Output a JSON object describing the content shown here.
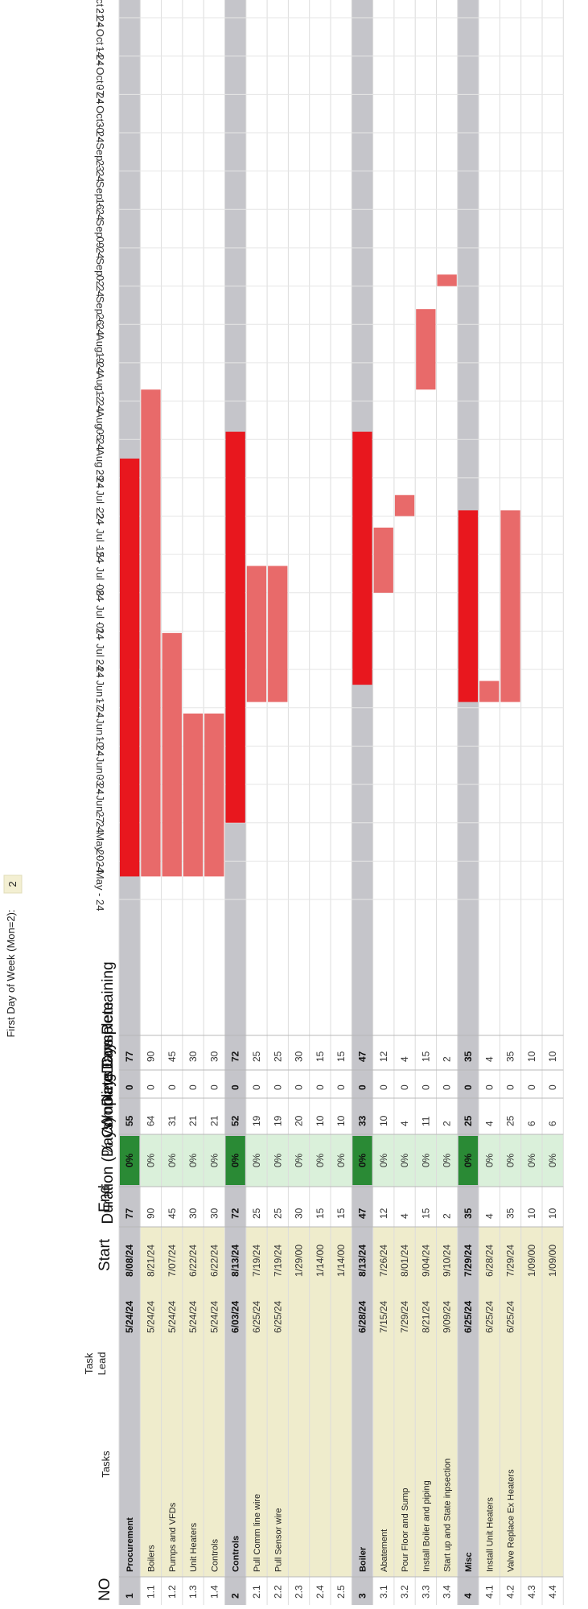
{
  "page_header": {
    "first_day_label": "First Day of Week (Mon=2):",
    "first_day_value": "2"
  },
  "columns": {
    "no": "NO",
    "tasks": "Tasks",
    "task_lead": "Task Lead",
    "start": "Start",
    "end": "End",
    "duration": "Duration (Days)",
    "pct_complete": "% Complete",
    "working_days": "Working Days",
    "days_complete": "Days Complete",
    "days_remaining": "Days Remaining"
  },
  "week_labels": [
    "20 - May - 24",
    "27 - May - 24",
    "03 - Jun - 24",
    "10 - Jun - 24",
    "17 - Jun - 24",
    "24 - Jun - 24",
    "01 - Jul - 24",
    "08 - Jul - 24",
    "15 - Jul - 24",
    "22 - Jul - 24",
    "29 - Jul - 24",
    "05 - Aug - 24",
    "12 - Aug - 24",
    "19 - Aug - 24",
    "26 - Aug - 24",
    "02 - Sep - 24",
    "09 - Sep - 24",
    "16 - Sep - 24",
    "23 - Sep - 24",
    "30 - Sep - 24",
    "07 - Oct - 24",
    "14 - Oct - 24",
    "21 - Oct - 24",
    "28 - Oct - 24",
    "04 - Nov - 24",
    "11 - Nov - 24",
    "18 - Nov - 24",
    "25 - Nov - 24",
    "02 - Dec - 24",
    "09 - Dec - 24",
    "16 - Dec - 24",
    "23 - Dec - 24"
  ],
  "rows": [
    {
      "no": "1",
      "task": "Procurement",
      "lead": "",
      "start": "5/24/24",
      "end": "8/08/24",
      "duration": "77",
      "pct": "0%",
      "working": "55",
      "complete": "0",
      "remaining": "77",
      "type": "phase",
      "bar_start": 0.6,
      "bar_end": 11.5
    },
    {
      "no": "1.1",
      "task": "Boilers",
      "lead": "",
      "start": "5/24/24",
      "end": "8/21/24",
      "duration": "90",
      "pct": "0%",
      "working": "64",
      "complete": "0",
      "remaining": "90",
      "type": "task",
      "bar_start": 0.6,
      "bar_end": 13.3
    },
    {
      "no": "1.2",
      "task": "Pumps and VFDs",
      "lead": "",
      "start": "5/24/24",
      "end": "7/07/24",
      "duration": "45",
      "pct": "0%",
      "working": "31",
      "complete": "0",
      "remaining": "45",
      "type": "task",
      "bar_start": 0.6,
      "bar_end": 6.95
    },
    {
      "no": "1.3",
      "task": "Unit Heaters",
      "lead": "",
      "start": "5/24/24",
      "end": "6/22/24",
      "duration": "30",
      "pct": "0%",
      "working": "21",
      "complete": "0",
      "remaining": "30",
      "type": "task",
      "bar_start": 0.6,
      "bar_end": 4.85
    },
    {
      "no": "1.4",
      "task": "Controls",
      "lead": "",
      "start": "5/24/24",
      "end": "6/22/24",
      "duration": "30",
      "pct": "0%",
      "working": "21",
      "complete": "0",
      "remaining": "30",
      "type": "task",
      "bar_start": 0.6,
      "bar_end": 4.85
    },
    {
      "no": "2",
      "task": "Controls",
      "lead": "",
      "start": "6/03/24",
      "end": "8/13/24",
      "duration": "72",
      "pct": "0%",
      "working": "52",
      "complete": "0",
      "remaining": "72",
      "type": "phase",
      "bar_start": 2.0,
      "bar_end": 12.2
    },
    {
      "no": "2.1",
      "task": "Pull Comm line wire",
      "lead": "",
      "start": "6/25/24",
      "end": "7/19/24",
      "duration": "25",
      "pct": "0%",
      "working": "19",
      "complete": "0",
      "remaining": "25",
      "type": "task",
      "bar_start": 5.15,
      "bar_end": 8.7
    },
    {
      "no": "2.2",
      "task": "Pull Sensor wire",
      "lead": "",
      "start": "6/25/24",
      "end": "7/19/24",
      "duration": "25",
      "pct": "0%",
      "working": "19",
      "complete": "0",
      "remaining": "25",
      "type": "task",
      "bar_start": 5.15,
      "bar_end": 8.7
    },
    {
      "no": "2.3",
      "task": "",
      "lead": "",
      "start": "",
      "end": "1/29/00",
      "duration": "30",
      "pct": "0%",
      "working": "20",
      "complete": "0",
      "remaining": "30",
      "type": "task"
    },
    {
      "no": "2.4",
      "task": "",
      "lead": "",
      "start": "",
      "end": "1/14/00",
      "duration": "15",
      "pct": "0%",
      "working": "10",
      "complete": "0",
      "remaining": "15",
      "type": "task"
    },
    {
      "no": "2.5",
      "task": "",
      "lead": "",
      "start": "",
      "end": "1/14/00",
      "duration": "15",
      "pct": "0%",
      "working": "10",
      "complete": "0",
      "remaining": "15",
      "type": "task"
    },
    {
      "no": "3",
      "task": "Boiler",
      "lead": "",
      "start": "6/28/24",
      "end": "8/13/24",
      "duration": "47",
      "pct": "0%",
      "working": "33",
      "complete": "0",
      "remaining": "47",
      "type": "phase",
      "bar_start": 5.6,
      "bar_end": 12.2
    },
    {
      "no": "3.1",
      "task": "Abatement",
      "lead": "",
      "start": "7/15/24",
      "end": "7/26/24",
      "duration": "12",
      "pct": "0%",
      "working": "10",
      "complete": "0",
      "remaining": "12",
      "type": "task",
      "bar_start": 8.0,
      "bar_end": 9.7
    },
    {
      "no": "3.2",
      "task": "Pour Floor and Sump",
      "lead": "",
      "start": "7/29/24",
      "end": "8/01/24",
      "duration": "4",
      "pct": "0%",
      "working": "4",
      "complete": "0",
      "remaining": "4",
      "type": "task",
      "bar_start": 10.0,
      "bar_end": 10.55
    },
    {
      "no": "3.3",
      "task": "Install Boiler and piping",
      "lead": "",
      "start": "8/21/24",
      "end": "9/04/24",
      "duration": "15",
      "pct": "0%",
      "working": "11",
      "complete": "0",
      "remaining": "15",
      "type": "task",
      "bar_start": 13.3,
      "bar_end": 15.4
    },
    {
      "no": "3.4",
      "task": "Start up and State inpsection",
      "lead": "",
      "start": "9/09/24",
      "end": "9/10/24",
      "duration": "2",
      "pct": "0%",
      "working": "2",
      "complete": "0",
      "remaining": "2",
      "type": "task",
      "bar_start": 16.0,
      "bar_end": 16.3
    },
    {
      "no": "4",
      "task": "Misc",
      "lead": "",
      "start": "6/25/24",
      "end": "7/29/24",
      "duration": "35",
      "pct": "0%",
      "working": "25",
      "complete": "0",
      "remaining": "35",
      "type": "phase",
      "bar_start": 5.15,
      "bar_end": 10.15
    },
    {
      "no": "4.1",
      "task": "Install Unit Heaters",
      "lead": "",
      "start": "6/25/24",
      "end": "6/28/24",
      "duration": "4",
      "pct": "0%",
      "working": "4",
      "complete": "0",
      "remaining": "4",
      "type": "task",
      "bar_start": 5.15,
      "bar_end": 5.7
    },
    {
      "no": "4.2",
      "task": "Valve Replace Ex Heaters",
      "lead": "",
      "start": "6/25/24",
      "end": "7/29/24",
      "duration": "35",
      "pct": "0%",
      "working": "25",
      "complete": "0",
      "remaining": "35",
      "type": "task",
      "bar_start": 5.15,
      "bar_end": 10.15
    },
    {
      "no": "4.3",
      "task": "",
      "lead": "",
      "start": "",
      "end": "1/09/00",
      "duration": "10",
      "pct": "0%",
      "working": "6",
      "complete": "0",
      "remaining": "10",
      "type": "task"
    },
    {
      "no": "4.4",
      "task": "",
      "lead": "",
      "start": "",
      "end": "1/09/00",
      "duration": "10",
      "pct": "0%",
      "working": "6",
      "complete": "0",
      "remaining": "10",
      "type": "task"
    }
  ],
  "colors": {
    "phase_band": "#c5c5ca",
    "phase_bar": "#e8171e",
    "task_bar": "#e86a6a",
    "task_area": "#efeccc",
    "pct_cell": "#daf0da",
    "pct_phase": "#2a8a35",
    "grid": "#dcdcdc"
  }
}
